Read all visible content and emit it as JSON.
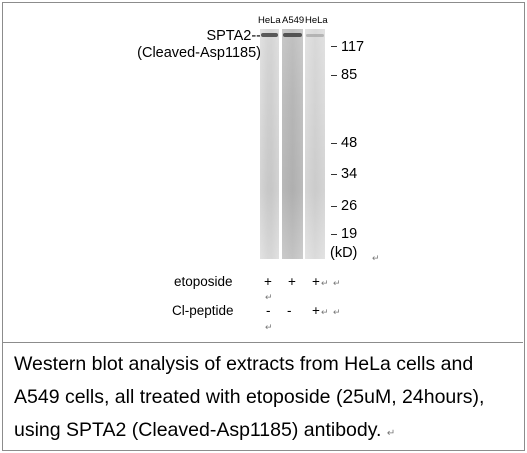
{
  "lanes": [
    "HeLa",
    "A549",
    "HeLa"
  ],
  "protein_label": [
    "SPTA2--",
    "(Cleaved-Asp1185)"
  ],
  "markers": [
    "117",
    "85",
    "48",
    "34",
    "26",
    "19"
  ],
  "unit": "(kD)",
  "treatments": [
    {
      "label": "etoposide",
      "signs": [
        "+",
        "+",
        "+"
      ]
    },
    {
      "label": "Cl-peptide",
      "signs": [
        "-",
        "-",
        "+"
      ]
    }
  ],
  "return_mark": "↵",
  "caption": [
    "Western blot analysis of extracts from HeLa cells and",
    "A549 cells, all treated with etoposide (25uM, 24hours),",
    "using SPTA2 (Cleaved-Asp1185) antibody."
  ],
  "colors": {
    "frame": "#8c8c8c",
    "band": "#3a3a3a",
    "lane_dark": "#b6b6b6",
    "lane_light": "#d3d3d3"
  }
}
